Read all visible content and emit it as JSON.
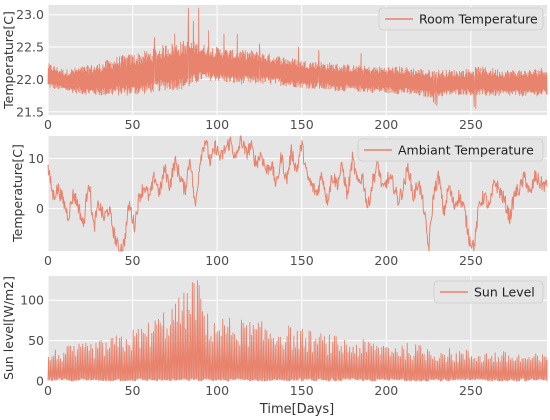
{
  "chart_data": {
    "xlabel": "Time[Days]",
    "xlim": [
      0,
      295
    ],
    "xticks": [
      0,
      50,
      100,
      150,
      200,
      250
    ],
    "panels": [
      {
        "type": "line",
        "series_name": "Room Temperature",
        "ylabel": "Temperature[C]",
        "ylim": [
          21.45,
          23.15
        ],
        "yticks": [
          "21.5",
          "22.0",
          "22.5",
          "23.0"
        ],
        "legend": "top-right",
        "grid": true,
        "color": "#e8836d",
        "envelope": {
          "x": [
            0,
            10,
            20,
            30,
            40,
            50,
            60,
            70,
            80,
            85,
            90,
            100,
            110,
            120,
            130,
            150,
            170,
            190,
            210,
            225,
            235,
            245,
            255,
            270,
            285,
            295
          ],
          "y_low": [
            21.85,
            21.8,
            21.75,
            21.72,
            21.72,
            21.72,
            21.75,
            21.8,
            21.8,
            21.85,
            21.95,
            21.95,
            21.9,
            21.9,
            21.9,
            21.85,
            21.8,
            21.78,
            21.75,
            21.7,
            21.72,
            21.75,
            21.72,
            21.72,
            21.72,
            21.72
          ],
          "y_high": [
            22.25,
            22.15,
            22.2,
            22.25,
            22.35,
            22.4,
            22.45,
            22.55,
            22.6,
            22.6,
            22.55,
            22.5,
            22.45,
            22.45,
            22.4,
            22.3,
            22.25,
            22.2,
            22.2,
            22.15,
            22.15,
            22.15,
            22.2,
            22.15,
            22.15,
            22.2
          ]
        },
        "spikes": [
          [
            63,
            22.65
          ],
          [
            75,
            22.7
          ],
          [
            83,
            23.1
          ],
          [
            86,
            22.9
          ],
          [
            89,
            23.1
          ],
          [
            95,
            22.75
          ],
          [
            104,
            22.7
          ],
          [
            112,
            22.7
          ],
          [
            125,
            22.55
          ],
          [
            148,
            22.5
          ],
          [
            160,
            22.45
          ],
          [
            185,
            22.4
          ],
          [
            230,
            21.6
          ],
          [
            253,
            21.55
          ]
        ],
        "dips": [
          [
            228,
            21.65
          ],
          [
            229,
            21.62
          ],
          [
            252,
            21.58
          ]
        ]
      },
      {
        "type": "line",
        "series_name": "Ambiant Temperature",
        "ylabel": "Temperature[C]",
        "ylim": [
          -8.5,
          14.5
        ],
        "yticks": [
          "0",
          "10"
        ],
        "legend": "top-right",
        "grid": true,
        "color": "#e8836d",
        "x": [
          0,
          3,
          6,
          9,
          12,
          15,
          18,
          21,
          24,
          27,
          30,
          33,
          36,
          39,
          42,
          45,
          48,
          51,
          54,
          57,
          60,
          63,
          66,
          69,
          72,
          75,
          78,
          81,
          84,
          87,
          90,
          93,
          96,
          99,
          102,
          105,
          108,
          111,
          114,
          117,
          120,
          123,
          126,
          129,
          132,
          135,
          138,
          141,
          144,
          147,
          150,
          153,
          156,
          159,
          162,
          165,
          168,
          171,
          174,
          177,
          180,
          183,
          186,
          189,
          192,
          195,
          198,
          201,
          204,
          207,
          210,
          213,
          216,
          219,
          222,
          225,
          228,
          231,
          234,
          237,
          240,
          243,
          246,
          249,
          252,
          255,
          258,
          261,
          264,
          267,
          270,
          273,
          276,
          279,
          282,
          285,
          288,
          291,
          295
        ],
        "values": [
          8.0,
          2.5,
          4.0,
          1.5,
          -1.5,
          3.0,
          0.5,
          -3.5,
          6.0,
          -4.0,
          1.0,
          -2.0,
          0.0,
          -5.0,
          -8.5,
          -7.0,
          1.0,
          -3.5,
          2.5,
          4.5,
          2.0,
          6.5,
          3.0,
          8.0,
          4.5,
          9.5,
          6.5,
          3.5,
          10.5,
          0.0,
          10.0,
          14.0,
          9.0,
          12.5,
          10.0,
          12.0,
          13.5,
          9.5,
          14.0,
          11.0,
          12.5,
          9.0,
          11.0,
          7.5,
          9.0,
          4.5,
          10.5,
          5.5,
          11.5,
          7.5,
          13.0,
          6.5,
          4.5,
          3.0,
          7.0,
          1.5,
          6.5,
          5.0,
          8.5,
          2.5,
          10.0,
          5.0,
          6.5,
          0.0,
          5.5,
          9.0,
          3.5,
          6.0,
          5.0,
          1.5,
          4.0,
          8.5,
          2.0,
          5.5,
          0.5,
          -8.0,
          3.0,
          6.5,
          -1.0,
          4.5,
          0.5,
          2.5,
          0.0,
          -6.0,
          -7.5,
          1.0,
          2.5,
          0.0,
          5.5,
          3.5,
          1.5,
          -2.0,
          3.0,
          4.0,
          6.5,
          2.5,
          6.5,
          5.0,
          4.5
        ]
      },
      {
        "type": "line",
        "series_name": "Sun Level",
        "ylabel": "Sun level[W/m2]",
        "ylim": [
          0,
          130
        ],
        "yticks": [
          "0",
          "50",
          "100"
        ],
        "legend": "top-right",
        "grid": true,
        "color": "#e8836d",
        "peaks_envelope": {
          "x": [
            0,
            15,
            30,
            45,
            60,
            70,
            80,
            85,
            90,
            93,
            105,
            120,
            140,
            160,
            180,
            200,
            220,
            240,
            260,
            280,
            295
          ],
          "max": [
            38,
            45,
            50,
            60,
            75,
            92,
            110,
            130,
            125,
            85,
            80,
            75,
            70,
            60,
            52,
            50,
            45,
            40,
            38,
            35,
            33
          ]
        }
      }
    ]
  }
}
